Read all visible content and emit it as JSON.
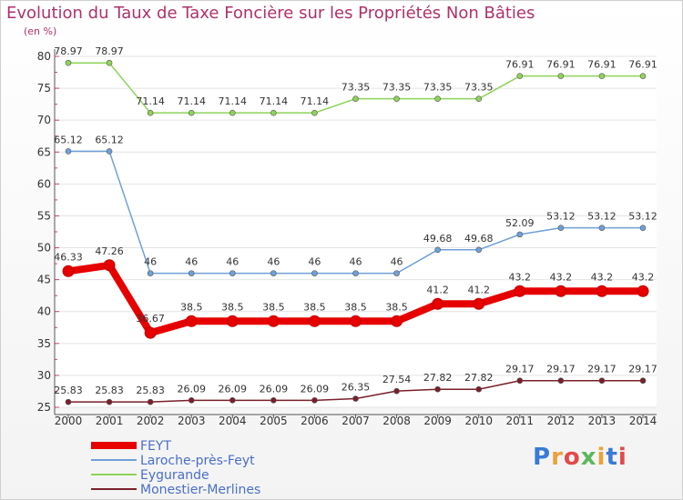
{
  "title": "Evolution du Taux de Taxe Foncière sur les Propriétés Non Bâties",
  "unit_label": "(en %)",
  "logo_text": "Proxiti",
  "chart_data": {
    "type": "line",
    "title": "Evolution du Taux de Taxe Foncière sur les Propriétés Non Bâties",
    "ylabel": "(en %)",
    "ylim": [
      25,
      80
    ],
    "yticks": [
      25,
      30,
      35,
      40,
      45,
      50,
      55,
      60,
      65,
      70,
      75,
      80
    ],
    "x": [
      "2000",
      "2001",
      "2002",
      "2003",
      "2004",
      "2005",
      "2006",
      "2007",
      "2008",
      "2009",
      "2010",
      "2011",
      "2012",
      "2013",
      "2014"
    ],
    "grid": "horizontal",
    "legend_position": "bottom-left",
    "series": [
      {
        "name": "FEYT",
        "color": "#e60000",
        "values": [
          46.33,
          47.26,
          36.67,
          38.5,
          38.5,
          38.5,
          38.5,
          38.5,
          38.5,
          41.2,
          41.2,
          43.2,
          43.2,
          43.2,
          43.2
        ],
        "labels": [
          "46.33",
          "47.26",
          "36.67",
          "38.5",
          "38.5",
          "38.5",
          "38.5",
          "38.5",
          "38.5",
          "41.2",
          "41.2",
          "43.2",
          "43.2",
          "43.2",
          "43.2"
        ]
      },
      {
        "name": "Laroche-près-Feyt",
        "color": "#6fa0d8",
        "values": [
          65.12,
          65.12,
          46,
          46,
          46,
          46,
          46,
          46,
          46,
          49.68,
          49.68,
          52.09,
          53.12,
          53.12,
          53.12
        ],
        "labels": [
          "65.12",
          "65.12",
          "46",
          "46",
          "46",
          "46",
          "46",
          "46",
          "46",
          "49.68",
          "49.68",
          "52.09",
          "53.12",
          "53.12",
          "53.12"
        ]
      },
      {
        "name": "Eygurande",
        "color": "#8fd35a",
        "values": [
          78.97,
          78.97,
          71.14,
          71.14,
          71.14,
          71.14,
          71.14,
          73.35,
          73.35,
          73.35,
          73.35,
          76.91,
          76.91,
          76.91,
          76.91
        ],
        "labels": [
          "78.97",
          "78.97",
          "71.14",
          "71.14",
          "71.14",
          "71.14",
          "71.14",
          "73.35",
          "73.35",
          "73.35",
          "73.35",
          "76.91",
          "76.91",
          "76.91",
          "76.91"
        ]
      },
      {
        "name": "Monestier-Merlines",
        "color": "#7a1f2b",
        "values": [
          25.83,
          25.83,
          25.83,
          26.09,
          26.09,
          26.09,
          26.09,
          26.35,
          27.54,
          27.82,
          27.82,
          29.17,
          29.17,
          29.17,
          29.17
        ],
        "labels": [
          "25.83",
          "25.83",
          "25.83",
          "26.09",
          "26.09",
          "26.09",
          "26.09",
          "26.35",
          "27.54",
          "27.82",
          "27.82",
          "29.17",
          "29.17",
          "29.17",
          "29.17"
        ]
      }
    ]
  }
}
